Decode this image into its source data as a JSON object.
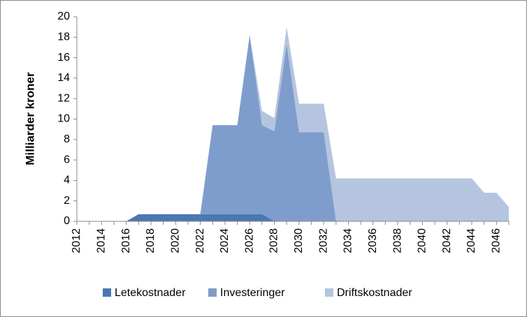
{
  "chart_data": {
    "type": "stacked_area",
    "ylabel": "Milliarder kroner",
    "categories": [
      "2012",
      null,
      "2014",
      null,
      "2016",
      null,
      "2018",
      null,
      "2020",
      null,
      "2022",
      null,
      "2024",
      null,
      "2026",
      null,
      "2028",
      null,
      "2030",
      null,
      "2032",
      null,
      "2034",
      null,
      "2036",
      null,
      "2038",
      null,
      "2040",
      null,
      "2042",
      null,
      "2044",
      null,
      "2046",
      null
    ],
    "series": [
      {
        "name": "Letekostnader",
        "color": "#4a78b4",
        "values": [
          0,
          0,
          0,
          0,
          0,
          0.7,
          0.7,
          0.7,
          0.7,
          0.7,
          0.7,
          0.7,
          0.7,
          0.7,
          0.7,
          0.7,
          0,
          0,
          0,
          0,
          0,
          0,
          0,
          0,
          0,
          0,
          0,
          0,
          0,
          0,
          0,
          0,
          0,
          0,
          0,
          0
        ]
      },
      {
        "name": "Investeringer",
        "color": "#7f9dcc",
        "values": [
          0,
          0,
          0,
          0,
          0,
          0,
          0,
          0,
          0,
          0,
          0,
          8.7,
          8.7,
          8.7,
          17.5,
          8.7,
          8.8,
          17.3,
          8.7,
          8.7,
          8.7,
          0,
          0,
          0,
          0,
          0,
          0,
          0,
          0,
          0,
          0,
          0,
          0,
          0,
          0,
          0
        ]
      },
      {
        "name": "Driftskostnader",
        "color": "#b5c5e0",
        "values": [
          0,
          0,
          0,
          0,
          0,
          0,
          0,
          0,
          0,
          0,
          0,
          0,
          0,
          0,
          0,
          1.4,
          1.3,
          1.7,
          2.8,
          2.8,
          2.8,
          4.2,
          4.2,
          4.2,
          4.2,
          4.2,
          4.2,
          4.2,
          4.2,
          4.2,
          4.2,
          4.2,
          4.2,
          2.8,
          2.8,
          1.4
        ]
      }
    ],
    "ylim": [
      0,
      20
    ],
    "yticks": [
      0,
      2,
      4,
      6,
      8,
      10,
      12,
      14,
      16,
      18,
      20
    ],
    "legend": "bottom"
  }
}
